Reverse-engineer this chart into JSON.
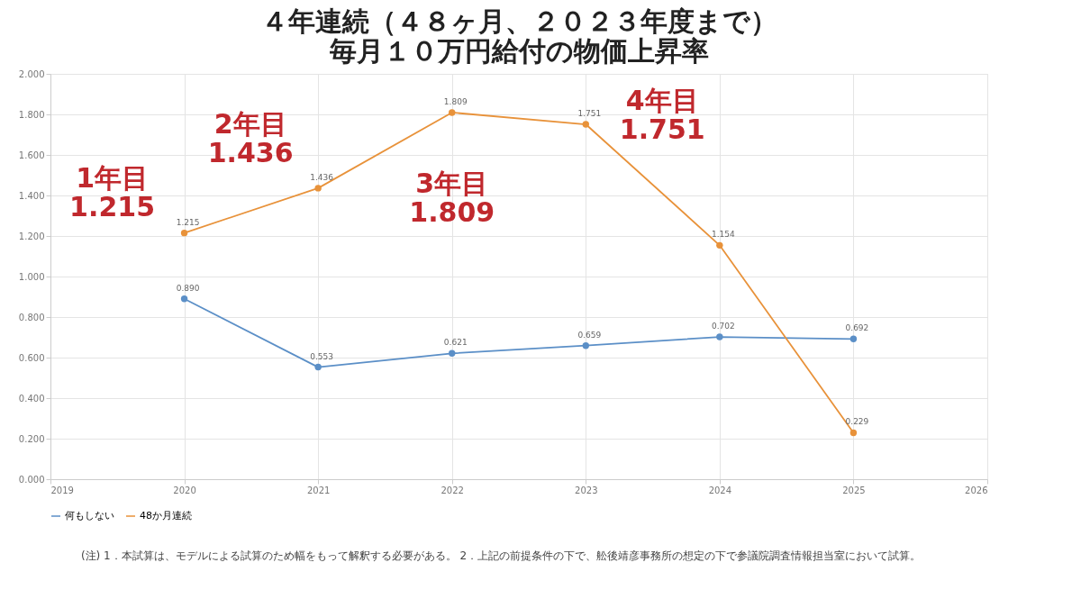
{
  "chart_data": {
    "type": "line",
    "title": "４年連続（４８ヶ月、２０２３年度まで）",
    "subtitle": "毎月１０万円給付の物価上昇率",
    "x": [
      2020,
      2021,
      2022,
      2023,
      2024,
      2025
    ],
    "series": [
      {
        "name": "何もしない",
        "color": "#5b8fc7",
        "values": [
          0.89,
          0.553,
          0.621,
          0.659,
          0.702,
          0.692
        ],
        "value_labels": [
          "0.890",
          "0.553",
          "0.621",
          "0.659",
          "0.702",
          "0.692"
        ]
      },
      {
        "name": "48か月連続",
        "color": "#e8923a",
        "values": [
          1.215,
          1.436,
          1.809,
          1.751,
          1.154,
          0.229
        ],
        "value_labels": [
          "1.215",
          "1.436",
          "1.809",
          "1.751",
          "1.154",
          "0.229"
        ]
      }
    ],
    "xlim": [
      2019,
      2026
    ],
    "xticks": [
      2019,
      2020,
      2021,
      2022,
      2023,
      2024,
      2025,
      2026
    ],
    "ylim": [
      0,
      2
    ],
    "yticks": [
      {
        "value": 0,
        "label": "0.000"
      },
      {
        "value": 0.2,
        "label": "0.200"
      },
      {
        "value": 0.4,
        "label": "0.400"
      },
      {
        "value": 0.6,
        "label": "0.600"
      },
      {
        "value": 0.8,
        "label": "0.800"
      },
      {
        "value": 1,
        "label": "1.000"
      },
      {
        "value": 1.2,
        "label": "1.200"
      },
      {
        "value": 1.4,
        "label": "1.400"
      },
      {
        "value": 1.6,
        "label": "1.600"
      },
      {
        "value": 1.8,
        "label": "1.800"
      },
      {
        "value": 2,
        "label": "2.000"
      }
    ],
    "grid": true,
    "legend": "bottom",
    "marker": "circle",
    "line_style": "solid",
    "annotations": [
      {
        "text": "1年目\n1.215",
        "x": 2020,
        "y": 1.215
      },
      {
        "text": "2年目\n1.436",
        "x": 2021,
        "y": 1.436
      },
      {
        "text": "3年目\n1.809",
        "x": 2022,
        "y": 1.809
      },
      {
        "text": "4年目\n1.751",
        "x": 2023,
        "y": 1.751
      },
      "(注) 1．本試算は、モデルによる試算のため幅をもって解釈する必要がある。 2．上記の前提条件の下で、舩後靖彦事務所の想定の下で参議院調査情報担当室において試算。"
    ]
  }
}
